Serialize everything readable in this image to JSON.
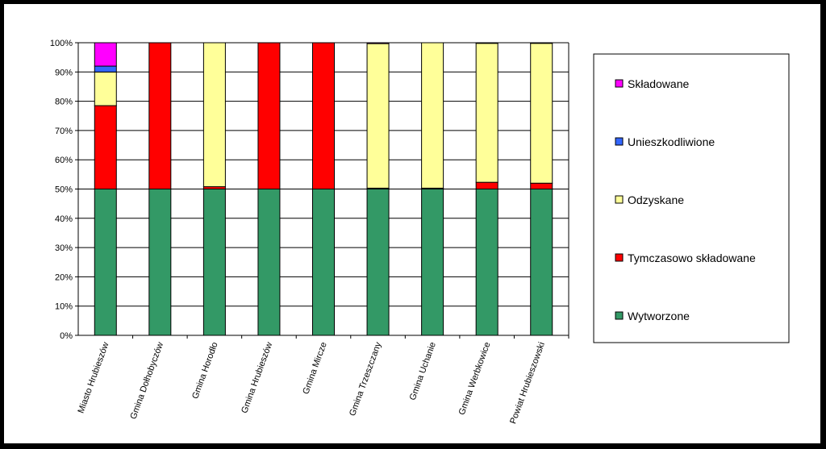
{
  "chart_data": {
    "type": "bar",
    "stacked": true,
    "percent_stacked": true,
    "categories": [
      "Miasto Hrubieszów",
      "Gmina Dołhobyczów",
      "Gmina Horodło",
      "Gmina Hrubieszów",
      "Gmina Mircze",
      "Gmina Trzeszczany",
      "Gmina Uchanie",
      "Gmina Werbkowice",
      "Powiat Hrubieszowski"
    ],
    "series": [
      {
        "name": "Wytworzone",
        "color": "#339966",
        "values": [
          50,
          50,
          50,
          50,
          50,
          50,
          50,
          50,
          50
        ]
      },
      {
        "name": "Tymczasowo składowane",
        "color": "#ff0000",
        "values": [
          28.5,
          50,
          0.8,
          50,
          50,
          0.3,
          0.3,
          2.3,
          2
        ]
      },
      {
        "name": "Odzyskane",
        "color": "#ffff99",
        "values": [
          11.5,
          0,
          49.2,
          0,
          0,
          49.4,
          49.7,
          47.5,
          47.8
        ]
      },
      {
        "name": "Unieszkodliwione",
        "color": "#3366ff",
        "values": [
          2,
          0,
          0,
          0,
          0,
          0,
          0,
          0,
          0
        ]
      },
      {
        "name": "Składowane",
        "color": "#ff00ff",
        "values": [
          8,
          0,
          0,
          0,
          0,
          0.3,
          0,
          0.2,
          0.2
        ]
      }
    ],
    "ylim": [
      0,
      100
    ],
    "yticks": [
      "0%",
      "10%",
      "20%",
      "30%",
      "40%",
      "50%",
      "60%",
      "70%",
      "80%",
      "90%",
      "100%"
    ],
    "grid": true,
    "legend_position": "right",
    "legend_order": [
      "Składowane",
      "Unieszkodliwione",
      "Odzyskane",
      "Tymczasowo składowane",
      "Wytworzone"
    ]
  }
}
